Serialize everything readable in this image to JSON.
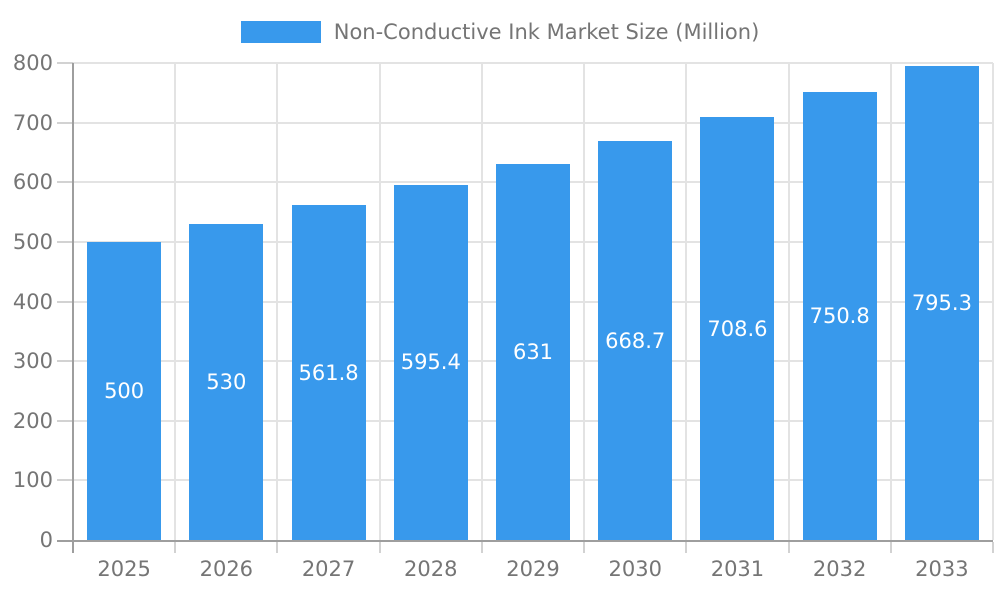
{
  "chart_data": {
    "type": "bar",
    "title": "",
    "legend": {
      "label": "Non-Conductive Ink Market Size (Million)",
      "position": "top-center"
    },
    "categories": [
      "2025",
      "2026",
      "2027",
      "2028",
      "2029",
      "2030",
      "2031",
      "2032",
      "2033"
    ],
    "series": [
      {
        "name": "Non-Conductive Ink Market Size (Million)",
        "values": [
          500,
          530,
          561.8,
          595.4,
          631,
          668.7,
          708.6,
          750.8,
          795.3
        ]
      }
    ],
    "value_labels": [
      "500",
      "530",
      "561.8",
      "595.4",
      "631",
      "668.7",
      "708.6",
      "750.8",
      "795.3"
    ],
    "xlabel": "",
    "ylabel": "",
    "ylim": [
      0,
      800
    ],
    "y_tick_step": 100,
    "y_tick_labels": [
      "0",
      "100",
      "200",
      "300",
      "400",
      "500",
      "600",
      "700",
      "800"
    ],
    "grid": true,
    "value_label_position": "center-of-bar",
    "colors": {
      "bar": "#3899EC",
      "grid_line": "#E3E3E3",
      "tick_line": "#D2D2D2",
      "axis_line": "#9E9E9E",
      "label_text": "#757575",
      "value_text": "#FFFFFF",
      "background": "#FFFFFF"
    }
  }
}
